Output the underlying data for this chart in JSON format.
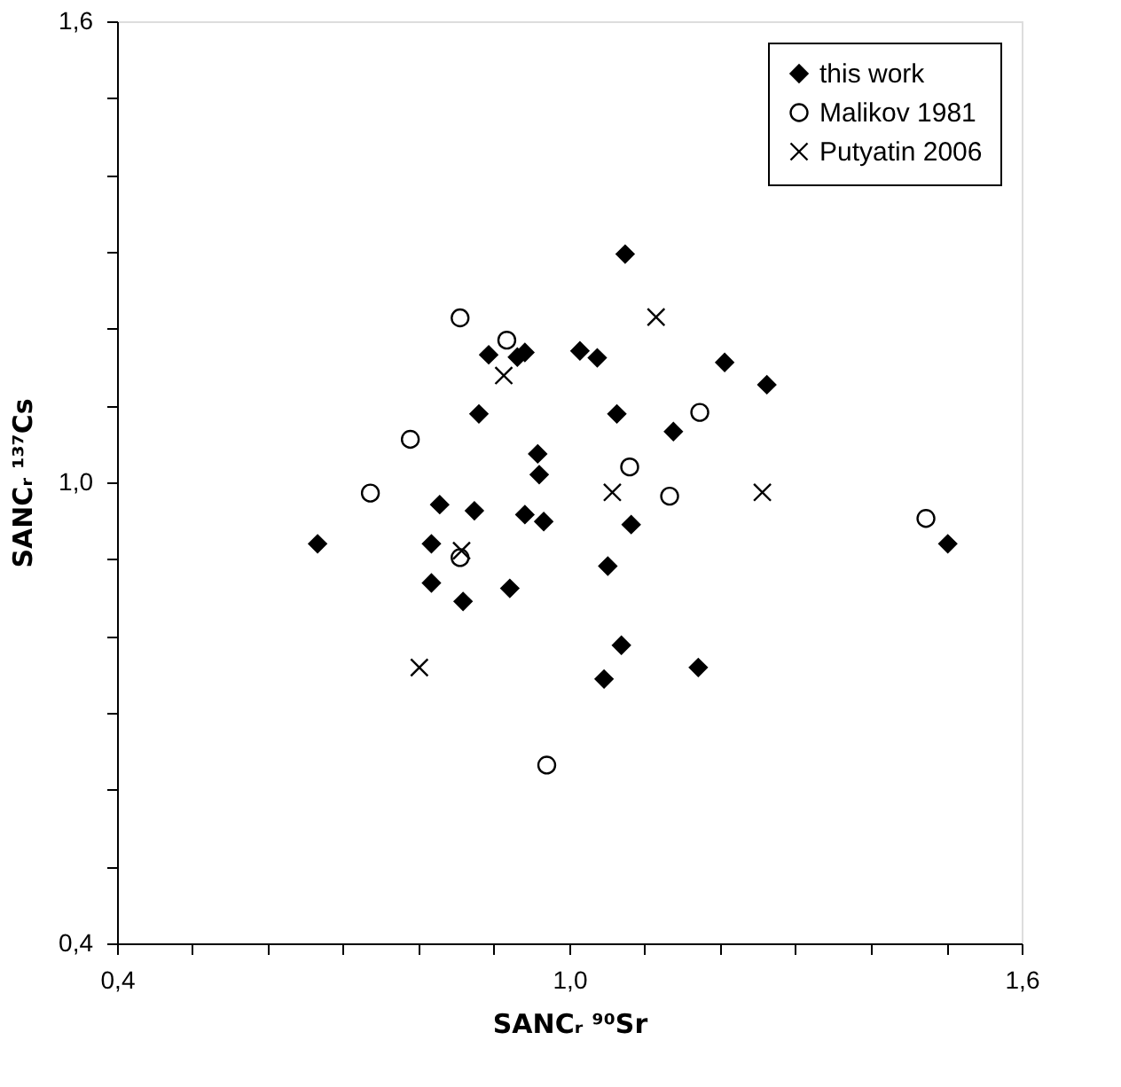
{
  "chart_data": {
    "type": "scatter",
    "xlabel": "SANCᵣ ⁹⁰Sr",
    "ylabel": "SANCᵣ ¹³⁷Cs",
    "xlim": [
      0.4,
      1.6
    ],
    "ylim": [
      0.4,
      1.6
    ],
    "xticks": [
      {
        "value": 0.4,
        "label": "0,4"
      },
      {
        "value": 0.5,
        "label": null
      },
      {
        "value": 0.6,
        "label": null
      },
      {
        "value": 0.7,
        "label": null
      },
      {
        "value": 0.8,
        "label": null
      },
      {
        "value": 0.9,
        "label": null
      },
      {
        "value": 1.0,
        "label": "1,0"
      },
      {
        "value": 1.1,
        "label": null
      },
      {
        "value": 1.2,
        "label": null
      },
      {
        "value": 1.3,
        "label": null
      },
      {
        "value": 1.4,
        "label": null
      },
      {
        "value": 1.5,
        "label": null
      },
      {
        "value": 1.6,
        "label": "1,6"
      }
    ],
    "yticks": [
      {
        "value": 0.4,
        "label": "0,4"
      },
      {
        "value": 0.5,
        "label": null
      },
      {
        "value": 0.6,
        "label": null
      },
      {
        "value": 0.7,
        "label": null
      },
      {
        "value": 0.8,
        "label": null
      },
      {
        "value": 0.9,
        "label": null
      },
      {
        "value": 1.0,
        "label": "1,0"
      },
      {
        "value": 1.1,
        "label": null
      },
      {
        "value": 1.2,
        "label": null
      },
      {
        "value": 1.3,
        "label": null
      },
      {
        "value": 1.4,
        "label": null
      },
      {
        "value": 1.5,
        "label": null
      },
      {
        "value": 1.6,
        "label": "1,6"
      }
    ],
    "grid": false,
    "legend": "top right",
    "series": [
      {
        "name": "this work",
        "color": "#000000",
        "marker": "diamond",
        "x": [
          0.666,
          0.828,
          0.817,
          0.817,
          0.859,
          0.874,
          0.88,
          0.893,
          0.931,
          0.941,
          0.941,
          0.921,
          0.958,
          0.96,
          0.966,
          1.014,
          1.037,
          1.074,
          1.063,
          1.082,
          1.051,
          1.069,
          1.046,
          1.138,
          1.206,
          1.262,
          1.171,
          1.502
        ],
        "values": [
          0.92,
          0.971,
          0.92,
          0.869,
          0.845,
          0.963,
          1.089,
          1.166,
          1.163,
          1.169,
          0.958,
          0.862,
          1.037,
          1.01,
          0.949,
          1.171,
          1.162,
          1.297,
          1.089,
          0.945,
          0.891,
          0.788,
          0.744,
          1.066,
          1.156,
          1.127,
          0.759,
          0.92
        ]
      },
      {
        "name": "Malikov 1981",
        "color": "#000000",
        "marker": "circle",
        "x": [
          0.736,
          0.789,
          0.855,
          0.917,
          0.855,
          0.97,
          1.08,
          1.133,
          1.173,
          1.473
        ],
        "values": [
          0.986,
          1.056,
          1.214,
          1.185,
          0.902,
          0.632,
          1.02,
          0.982,
          1.091,
          0.953
        ]
      },
      {
        "name": "Putyatin 2006",
        "color": "#000000",
        "marker": "cross",
        "x": [
          0.801,
          0.857,
          0.913,
          1.057,
          1.115,
          1.256
        ],
        "values": [
          0.759,
          0.911,
          1.139,
          0.987,
          1.215,
          0.987
        ]
      }
    ]
  }
}
